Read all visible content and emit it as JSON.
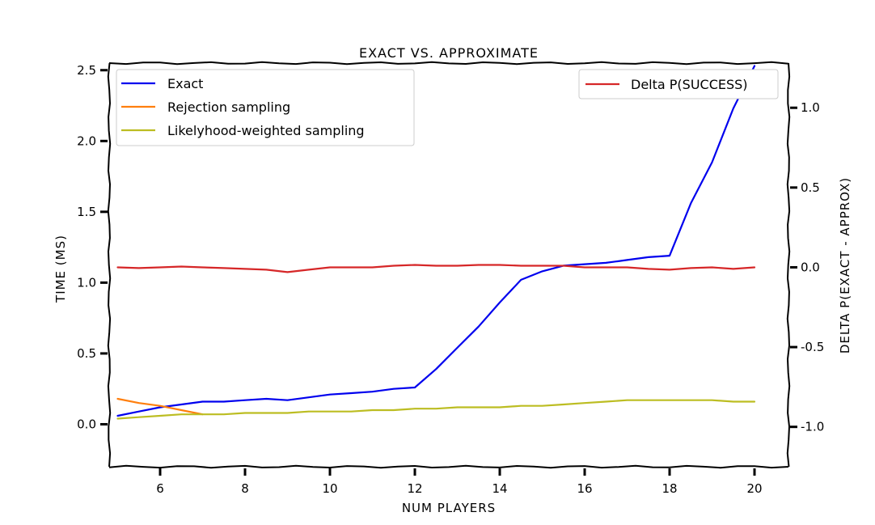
{
  "chart_data": {
    "type": "line",
    "title": "EXACT VS. APPROXIMATE",
    "xlabel": "NUM PLAYERS",
    "ylabel": "TIME (MS)",
    "y2label": "DELTA P(EXACT - APPROX)",
    "xlim": [
      4.8,
      20.8
    ],
    "ylim": [
      -0.3,
      2.55
    ],
    "y2lim": [
      -1.25,
      1.28
    ],
    "xticks": [
      "6",
      "8",
      "10",
      "12",
      "14",
      "16",
      "18",
      "20"
    ],
    "yticks": [
      "0.0",
      "0.5",
      "1.0",
      "1.5",
      "2.0",
      "2.5"
    ],
    "y2ticks": [
      "-1.0",
      "-0.5",
      "0.0",
      "0.5",
      "1.0"
    ],
    "legend_left_placement": "top-left",
    "legend_right_placement": "top-right",
    "series": [
      {
        "name": "Exact",
        "axis": "left",
        "color": "#0000ee",
        "x": [
          5,
          5.5,
          6,
          6.5,
          7,
          7.5,
          8,
          8.5,
          9,
          9.5,
          10,
          10.5,
          11,
          11.5,
          12,
          12.5,
          13,
          13.5,
          14,
          14.5,
          15,
          15.5,
          16,
          16.5,
          17,
          17.5,
          18,
          18.5,
          19,
          19.5,
          20
        ],
        "y": [
          0.06,
          0.09,
          0.12,
          0.14,
          0.16,
          0.16,
          0.17,
          0.18,
          0.17,
          0.19,
          0.21,
          0.22,
          0.23,
          0.25,
          0.26,
          0.39,
          0.54,
          0.69,
          0.86,
          1.02,
          1.08,
          1.12,
          1.13,
          1.14,
          1.16,
          1.18,
          1.19,
          1.56,
          1.85,
          2.23,
          2.53
        ]
      },
      {
        "name": "Rejection sampling",
        "axis": "left",
        "color": "#ff7f0e",
        "x": [
          5,
          5.5,
          6,
          6.5,
          7
        ],
        "y": [
          0.18,
          0.15,
          0.13,
          0.1,
          0.07
        ]
      },
      {
        "name": "Likelyhood-weighted sampling",
        "axis": "left",
        "color": "#bcbd22",
        "x": [
          5,
          5.5,
          6,
          6.5,
          7,
          7.5,
          8,
          8.5,
          9,
          9.5,
          10,
          10.5,
          11,
          11.5,
          12,
          12.5,
          13,
          13.5,
          14,
          14.5,
          15,
          15.5,
          16,
          16.5,
          17,
          17.5,
          18,
          18.5,
          19,
          19.5,
          20
        ],
        "y": [
          0.04,
          0.05,
          0.06,
          0.07,
          0.07,
          0.07,
          0.08,
          0.08,
          0.08,
          0.09,
          0.09,
          0.09,
          0.1,
          0.1,
          0.11,
          0.11,
          0.12,
          0.12,
          0.12,
          0.13,
          0.13,
          0.14,
          0.15,
          0.16,
          0.17,
          0.17,
          0.17,
          0.17,
          0.17,
          0.16,
          0.16
        ]
      },
      {
        "name": "Delta P(SUCCESS)",
        "axis": "right",
        "color": "#d62728",
        "x": [
          5,
          5.5,
          6,
          6.5,
          7,
          7.5,
          8,
          8.5,
          9,
          9.5,
          10,
          10.5,
          11,
          11.5,
          12,
          12.5,
          13,
          13.5,
          14,
          14.5,
          15,
          15.5,
          16,
          16.5,
          17,
          17.5,
          18,
          18.5,
          19,
          19.5,
          20
        ],
        "y": [
          0.0,
          -0.005,
          0.0,
          0.005,
          0.0,
          -0.005,
          -0.01,
          -0.015,
          -0.03,
          -0.015,
          0.0,
          0.0,
          0.0,
          0.01,
          0.015,
          0.01,
          0.01,
          0.015,
          0.015,
          0.01,
          0.01,
          0.01,
          0.0,
          0.0,
          0.0,
          -0.01,
          -0.015,
          -0.005,
          0.0,
          -0.01,
          0.0
        ]
      }
    ]
  }
}
